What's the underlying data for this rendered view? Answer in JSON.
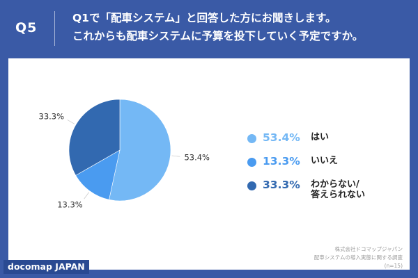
{
  "header": {
    "q_label": "Q5",
    "question_line1": "Q1で「配車システム」と回答した方にお聞きします。",
    "question_line2": "これからも配車システムに予算を投下していく予定ですか。"
  },
  "chart_data": {
    "type": "pie",
    "title": "",
    "slices": [
      {
        "label": "はい",
        "value": 53.4,
        "display": "53.4%",
        "color": "#74b8f5"
      },
      {
        "label": "いいえ",
        "value": 13.3,
        "display": "13.3%",
        "color": "#4a9bf0"
      },
      {
        "label": "わからない/答えられない",
        "value": 33.3,
        "display": "33.3%",
        "color": "#3269b0"
      }
    ],
    "legend_placement": "right"
  },
  "legend": {
    "items": [
      {
        "pct": "53.4%",
        "label_line1": "はい",
        "label_line2": "",
        "color": "#74b8f5"
      },
      {
        "pct": "13.3%",
        "label_line1": "いいえ",
        "label_line2": "",
        "color": "#4a9bf0"
      },
      {
        "pct": "33.3%",
        "label_line1": "わからない/",
        "label_line2": "答えられない",
        "color": "#3269b0"
      }
    ]
  },
  "source": {
    "line1": "株式会社ドコマップジャパン",
    "line2": "配車システムの導入実態に関する調査",
    "line3": "(n=15)"
  },
  "brand": {
    "name": "docomap JAPAN"
  },
  "colors": {
    "background": "#3a5aa6",
    "brand_bg": "#2a4a92"
  }
}
